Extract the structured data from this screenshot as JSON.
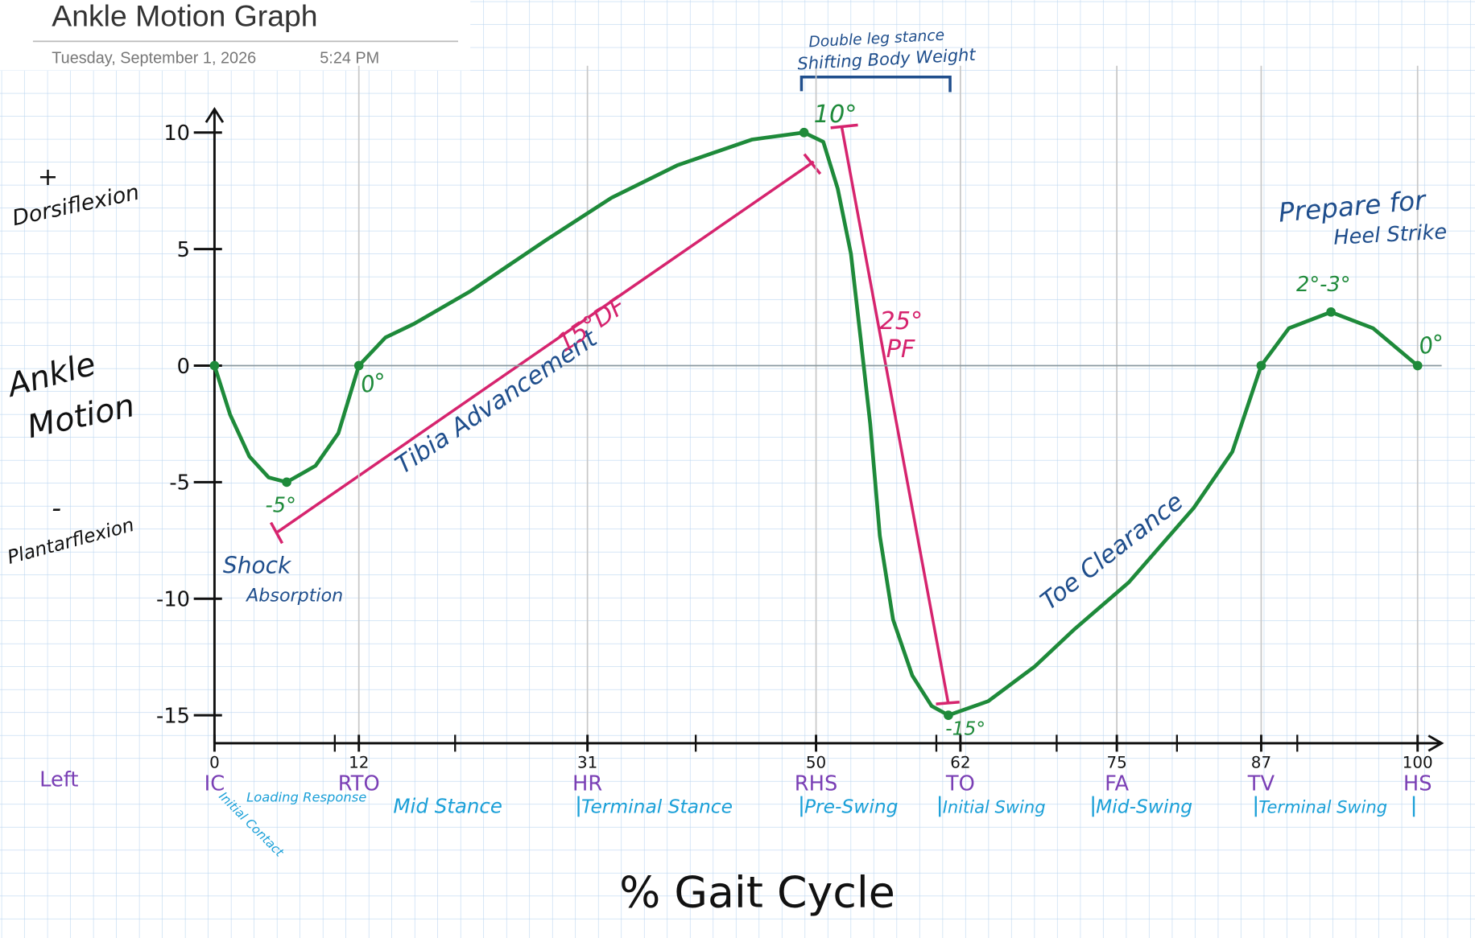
{
  "page_header": {
    "title": "Ankle Motion Graph",
    "date": "Tuesday, September 1, 2026",
    "time": "5:24 PM"
  },
  "chart_data": {
    "type": "line",
    "x_label": "% Gait Cycle",
    "color": "#1e8a3a",
    "x": [
      0,
      1.3,
      2.9,
      4.5,
      6,
      8.4,
      10.3,
      12,
      14.2,
      16.6,
      21.3,
      27.6,
      33,
      38.5,
      44.7,
      49,
      50.6,
      51.8,
      52.9,
      53.7,
      54.5,
      55.3,
      56.4,
      58,
      59.6,
      61,
      64.3,
      68.2,
      71.5,
      76,
      81.4,
      84.6,
      87,
      89.3,
      92.8,
      96.3,
      100
    ],
    "values": [
      0,
      -2.1,
      -3.9,
      -4.8,
      -5,
      -4.3,
      -2.9,
      0,
      1.2,
      1.8,
      3.2,
      5.4,
      7.2,
      8.6,
      9.7,
      10,
      9.6,
      7.6,
      4.8,
      1.2,
      -2.5,
      -7.3,
      -10.9,
      -13.3,
      -14.6,
      -15,
      -14.4,
      -12.9,
      -11.3,
      -9.3,
      -6.1,
      -3.7,
      0,
      1.6,
      2.3,
      1.6,
      0
    ],
    "markers": {
      "x": [
        0,
        6,
        12,
        49,
        61,
        87,
        92.8,
        100
      ],
      "values": [
        0,
        -5,
        0,
        10,
        -15,
        0,
        2.3,
        0
      ]
    },
    "xlim": [
      0,
      102
    ],
    "ylim": [
      -16.2,
      11
    ],
    "xticks": [
      0,
      12,
      31,
      50,
      62,
      75,
      87,
      100
    ],
    "xminorticks": [
      10,
      20,
      40,
      60,
      70,
      80,
      90
    ],
    "tick_codes": [
      "IC",
      "RTO",
      "HR",
      "RHS",
      "TO",
      "FA",
      "TV",
      "HS"
    ],
    "yticks": [
      10,
      5,
      0,
      -5,
      -10,
      -15
    ],
    "xgrid": true,
    "side_label": "Left",
    "phases": [
      "Initial Contact",
      "Loading Response",
      "Mid Stance",
      "Terminal Stance",
      "Pre-Swing",
      "Initial Swing",
      "Mid-Swing",
      "Terminal Swing"
    ],
    "annotations": [
      {
        "text": "+",
        "color": "#111111"
      },
      {
        "text": "Dorsiflexion",
        "color": "#111111"
      },
      {
        "text": "Ankle",
        "color": "#111111"
      },
      {
        "text": "Motion",
        "color": "#111111"
      },
      {
        "text": "-",
        "color": "#111111"
      },
      {
        "text": "Plantarflexion",
        "color": "#111111"
      },
      {
        "text": "Shock",
        "color": "#1f4e8c"
      },
      {
        "text": "Absorption",
        "color": "#1f4e8c"
      },
      {
        "text": "Tibia Advancement",
        "color": "#1f4e8c"
      },
      {
        "text": "15°DF",
        "color": "#d6246e"
      },
      {
        "text": "25°",
        "color": "#d6246e"
      },
      {
        "text": "PF",
        "color": "#d6246e"
      },
      {
        "text": "Double leg stance",
        "color": "#1f4e8c"
      },
      {
        "text": "Shifting Body Weight",
        "color": "#1f4e8c"
      },
      {
        "text": "Prepare for",
        "color": "#1f4e8c"
      },
      {
        "text": "Heel Strike",
        "color": "#1f4e8c"
      },
      {
        "text": "Toe Clearance",
        "color": "#1f4e8c"
      },
      {
        "text": "-5°",
        "color": "#1e8a3a"
      },
      {
        "text": "0°",
        "color": "#1e8a3a"
      },
      {
        "text": "10°",
        "color": "#1e8a3a"
      },
      {
        "text": "-15°",
        "color": "#1e8a3a"
      },
      {
        "text": "2°-3°",
        "color": "#1e8a3a"
      },
      {
        "text": "0°",
        "color": "#1e8a3a"
      }
    ]
  }
}
